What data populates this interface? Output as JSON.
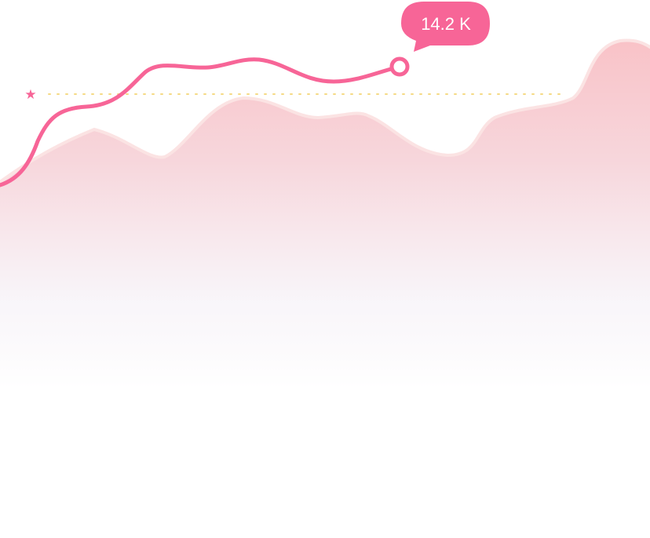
{
  "chart_data": {
    "type": "area",
    "colors": {
      "line": "#F76597",
      "area_top": "#F9C2C7",
      "area_edge": "#FBE3E3",
      "reference_line": "#F5DA85",
      "tooltip_bg": "#F76597",
      "tooltip_text": "#FFFFFF",
      "marker_fill": "#FFFFFF"
    },
    "reference_marker": {
      "icon": "star-icon",
      "glyph": "★"
    },
    "tooltip": {
      "label": "14.2 K"
    },
    "grid": false,
    "legend": "none",
    "axes_visible": false
  }
}
